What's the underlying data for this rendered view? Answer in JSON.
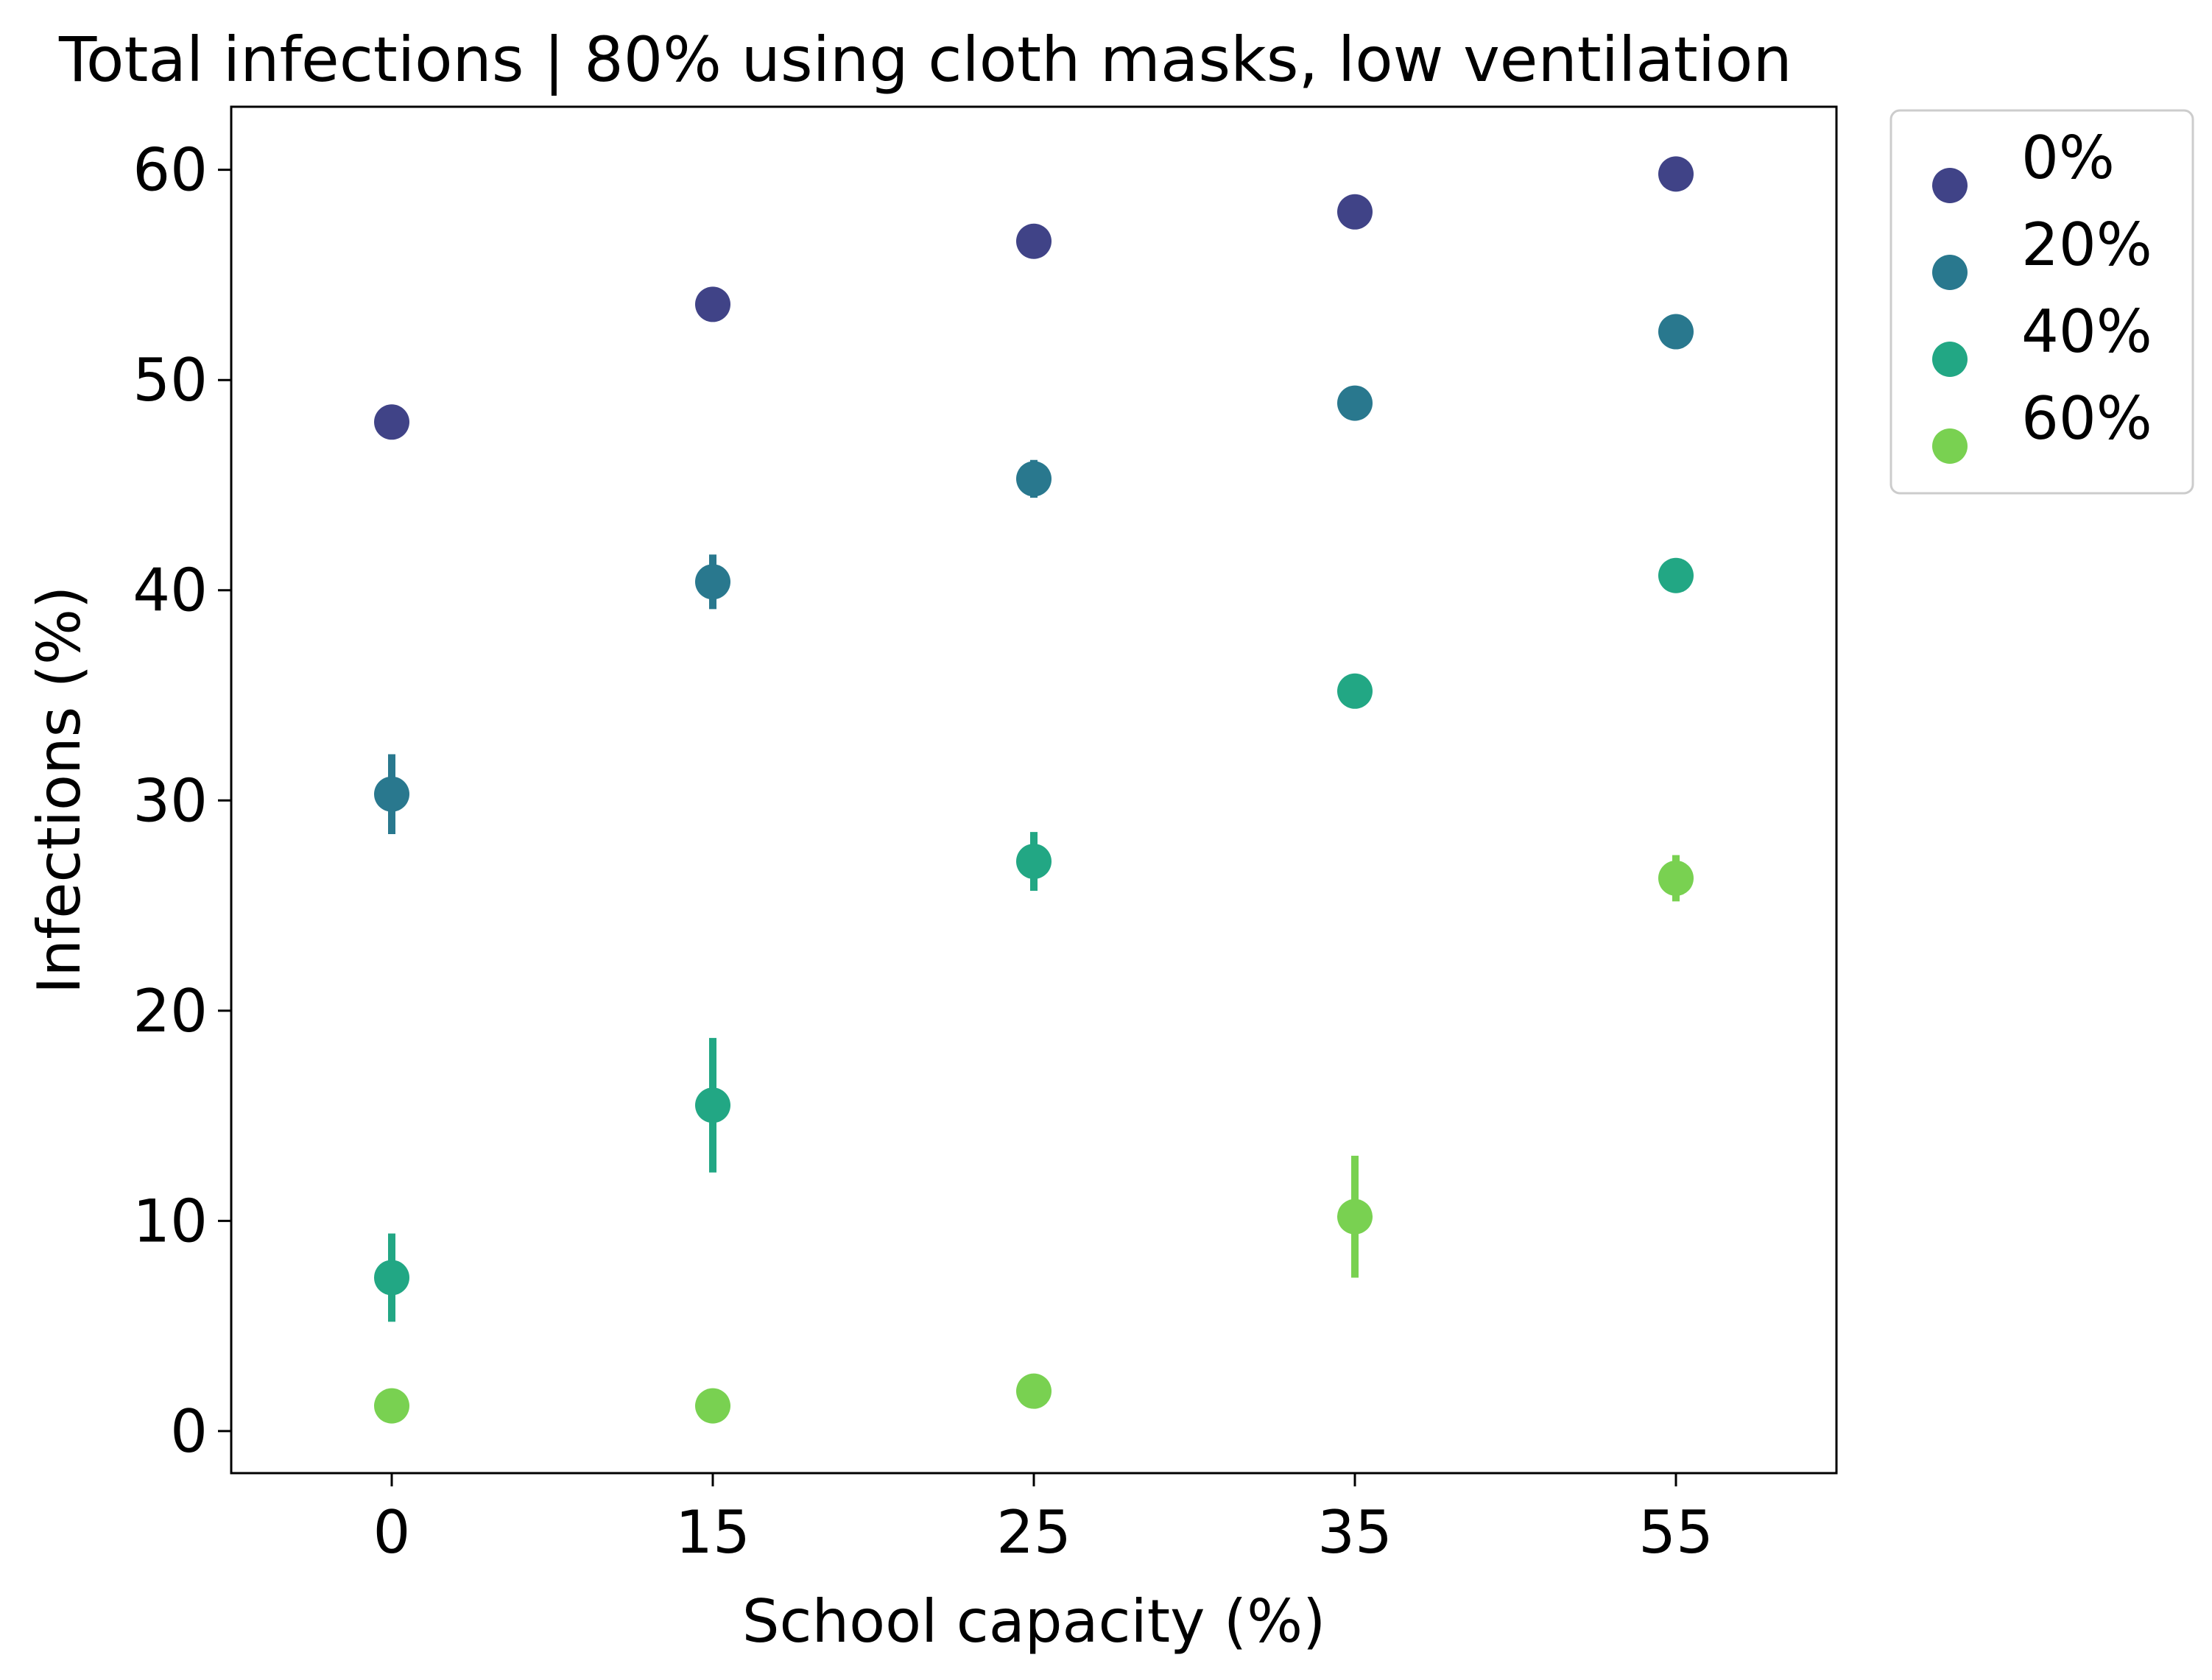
{
  "chart_data": {
    "type": "scatter",
    "title": "Total infections | 80% using cloth masks, low ventilation",
    "xlabel": "School capacity (%)",
    "ylabel": "Infections (%)",
    "categories": [
      "0",
      "15",
      "25",
      "35",
      "55"
    ],
    "ylim": [
      -2,
      63
    ],
    "yticks": [
      "0",
      "10",
      "20",
      "30",
      "40",
      "50",
      "60"
    ],
    "grid": false,
    "legend_position": "outside-top-right",
    "series": [
      {
        "name": "0%",
        "color": "#404387",
        "values": [
          48.0,
          53.6,
          56.6,
          58.0,
          59.8
        ],
        "errors": [
          0.8,
          0.3,
          0.3,
          0.3,
          0.3
        ]
      },
      {
        "name": "20%",
        "color": "#29788e",
        "values": [
          30.3,
          40.4,
          45.3,
          48.9,
          52.3
        ],
        "errors": [
          1.9,
          1.3,
          0.9,
          0.3,
          0.3
        ]
      },
      {
        "name": "40%",
        "color": "#22a784",
        "values": [
          7.3,
          15.5,
          27.1,
          35.2,
          40.7
        ],
        "errors": [
          2.1,
          3.2,
          1.4,
          0.3,
          0.3
        ]
      },
      {
        "name": "60%",
        "color": "#79d151",
        "values": [
          1.2,
          1.2,
          1.9,
          10.2,
          26.3
        ],
        "errors": [
          0.2,
          0.2,
          0.5,
          2.9,
          1.1
        ]
      }
    ]
  }
}
